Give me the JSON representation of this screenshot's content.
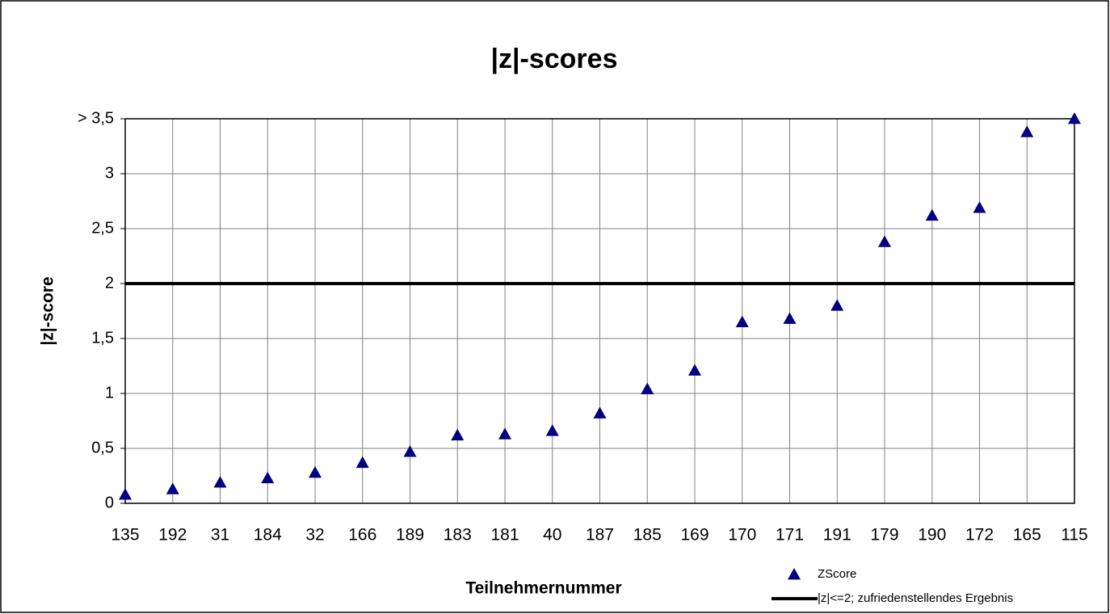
{
  "chart_data": {
    "type": "scatter",
    "title": "|z|-scores",
    "x_label": "Teilnehmernummer",
    "y_label": "|z|-score",
    "categories": [
      "135",
      "192",
      "31",
      "184",
      "32",
      "166",
      "189",
      "183",
      "181",
      "40",
      "187",
      "185",
      "169",
      "170",
      "171",
      "191",
      "179",
      "190",
      "172",
      "165",
      "115"
    ],
    "series": [
      {
        "name": "ZScore",
        "color": "#000080",
        "marker": "triangle",
        "values": [
          0.08,
          0.13,
          0.19,
          0.23,
          0.28,
          0.37,
          0.47,
          0.62,
          0.63,
          0.66,
          0.82,
          1.04,
          1.21,
          1.65,
          1.68,
          1.8,
          2.38,
          2.62,
          2.69,
          3.38,
          3.5
        ]
      }
    ],
    "reference_line": {
      "name": "|z|<=2; zufriedenstellendes Ergebnis",
      "value": 2,
      "color": "#000000"
    },
    "ylim": [
      0,
      3.5
    ],
    "yticks": [
      0,
      {
        "value": 0.5,
        "label": "0,5"
      },
      1,
      {
        "value": 1.5,
        "label": "1,5"
      },
      2,
      {
        "value": 2.5,
        "label": "2,5"
      },
      3,
      {
        "value": 3.5,
        "label": "> 3,5"
      }
    ],
    "grid": true,
    "legend": "lower right"
  }
}
